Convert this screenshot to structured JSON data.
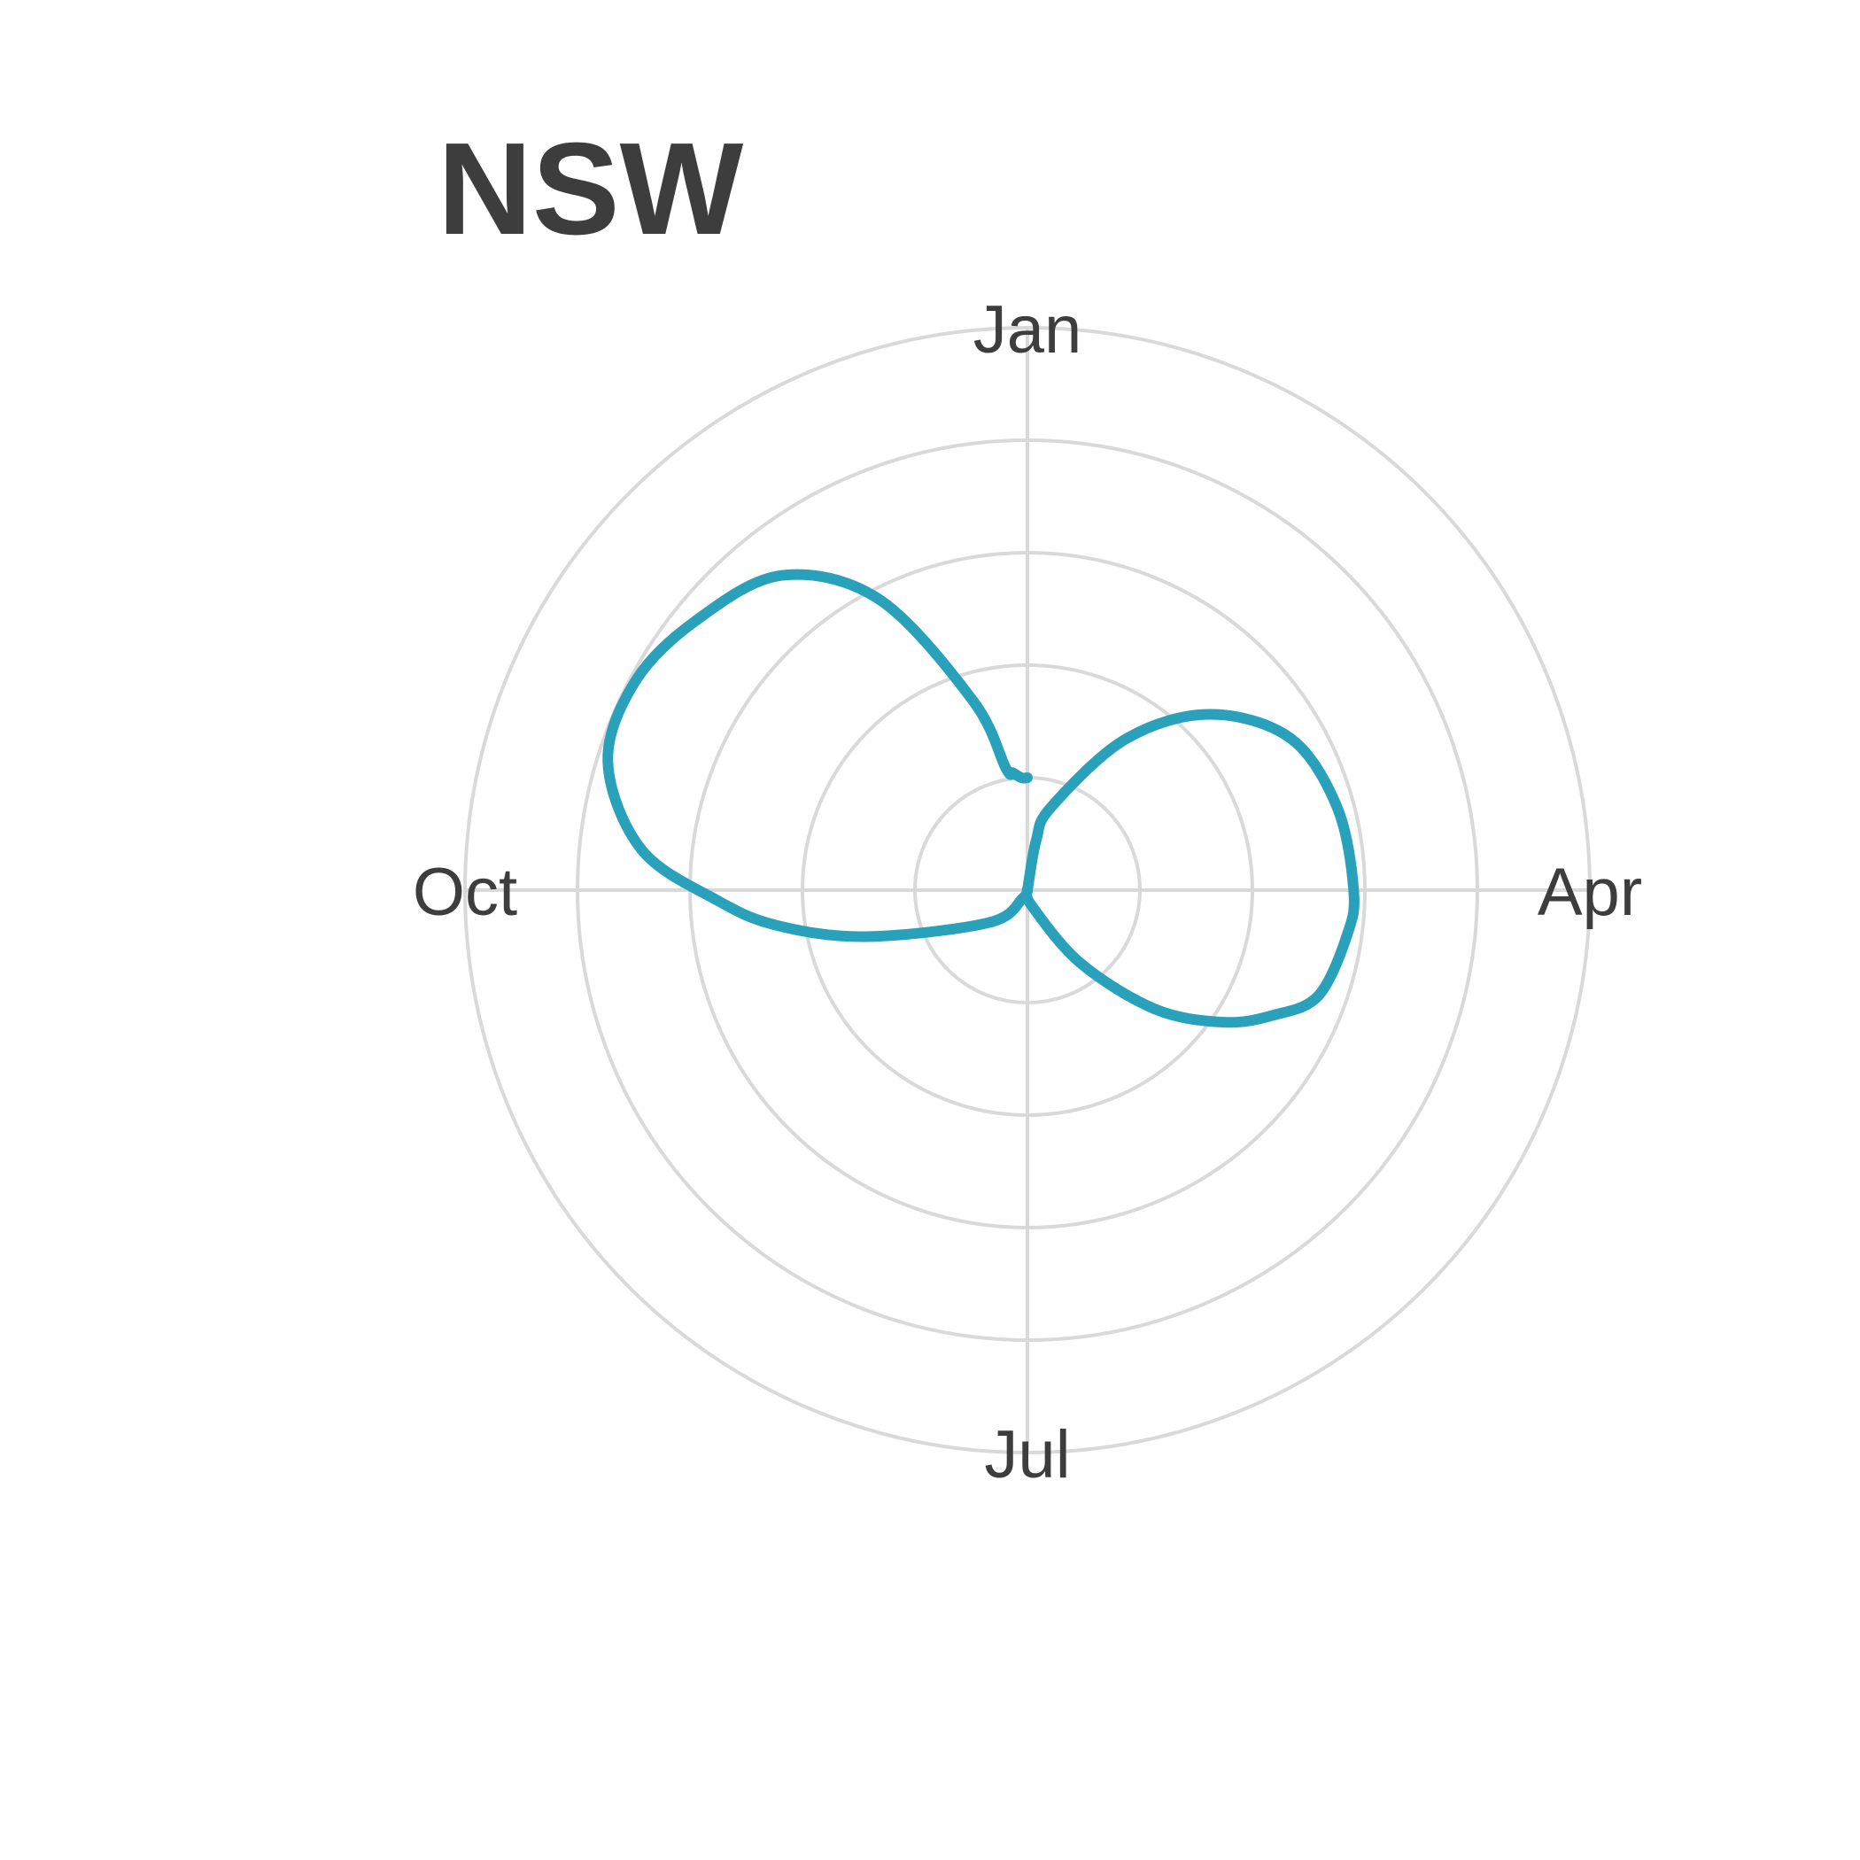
{
  "chart_data": {
    "type": "line",
    "coord": "polar",
    "title": "NSW",
    "theta_labels": [
      "Jan",
      "Apr",
      "Jul",
      "Oct"
    ],
    "rings": 5,
    "grid": true,
    "series": [
      {
        "color": "#2aa1bb",
        "points": [
          {
            "angle_deg": 0,
            "r": 0.0
          },
          {
            "angle_deg": 10,
            "r": 0.45
          },
          {
            "angle_deg": 16,
            "r": 0.77
          },
          {
            "angle_deg": 33,
            "r": 1.6
          },
          {
            "angle_deg": 46,
            "r": 2.25
          },
          {
            "angle_deg": 60,
            "r": 2.7
          },
          {
            "angle_deg": 75,
            "r": 2.85
          },
          {
            "angle_deg": 90,
            "r": 2.9
          },
          {
            "angle_deg": 98,
            "r": 2.87
          },
          {
            "angle_deg": 110,
            "r": 2.75
          },
          {
            "angle_deg": 117,
            "r": 2.45
          },
          {
            "angle_deg": 124,
            "r": 2.1
          },
          {
            "angle_deg": 133,
            "r": 1.55
          },
          {
            "angle_deg": 144,
            "r": 0.8
          },
          {
            "angle_deg": 165,
            "r": 0.14
          },
          {
            "angle_deg": 180,
            "r": 0.0
          },
          {
            "angle_deg": 210,
            "r": 0.08
          },
          {
            "angle_deg": 230,
            "r": 0.45
          },
          {
            "angle_deg": 254,
            "r": 1.5
          },
          {
            "angle_deg": 262,
            "r": 2.25
          },
          {
            "angle_deg": 268,
            "r": 2.75
          },
          {
            "angle_deg": 276,
            "r": 3.45
          },
          {
            "angle_deg": 287,
            "r": 3.9
          },
          {
            "angle_deg": 298,
            "r": 3.95
          },
          {
            "angle_deg": 309,
            "r": 3.8
          },
          {
            "angle_deg": 322,
            "r": 3.55
          },
          {
            "angle_deg": 333,
            "r": 2.9
          },
          {
            "angle_deg": 344,
            "r": 1.75
          },
          {
            "angle_deg": 350,
            "r": 1.1
          },
          {
            "angle_deg": 353,
            "r": 1.05
          },
          {
            "angle_deg": 357,
            "r": 1.0
          },
          {
            "angle_deg": 360,
            "r": 1.0
          }
        ]
      }
    ]
  }
}
